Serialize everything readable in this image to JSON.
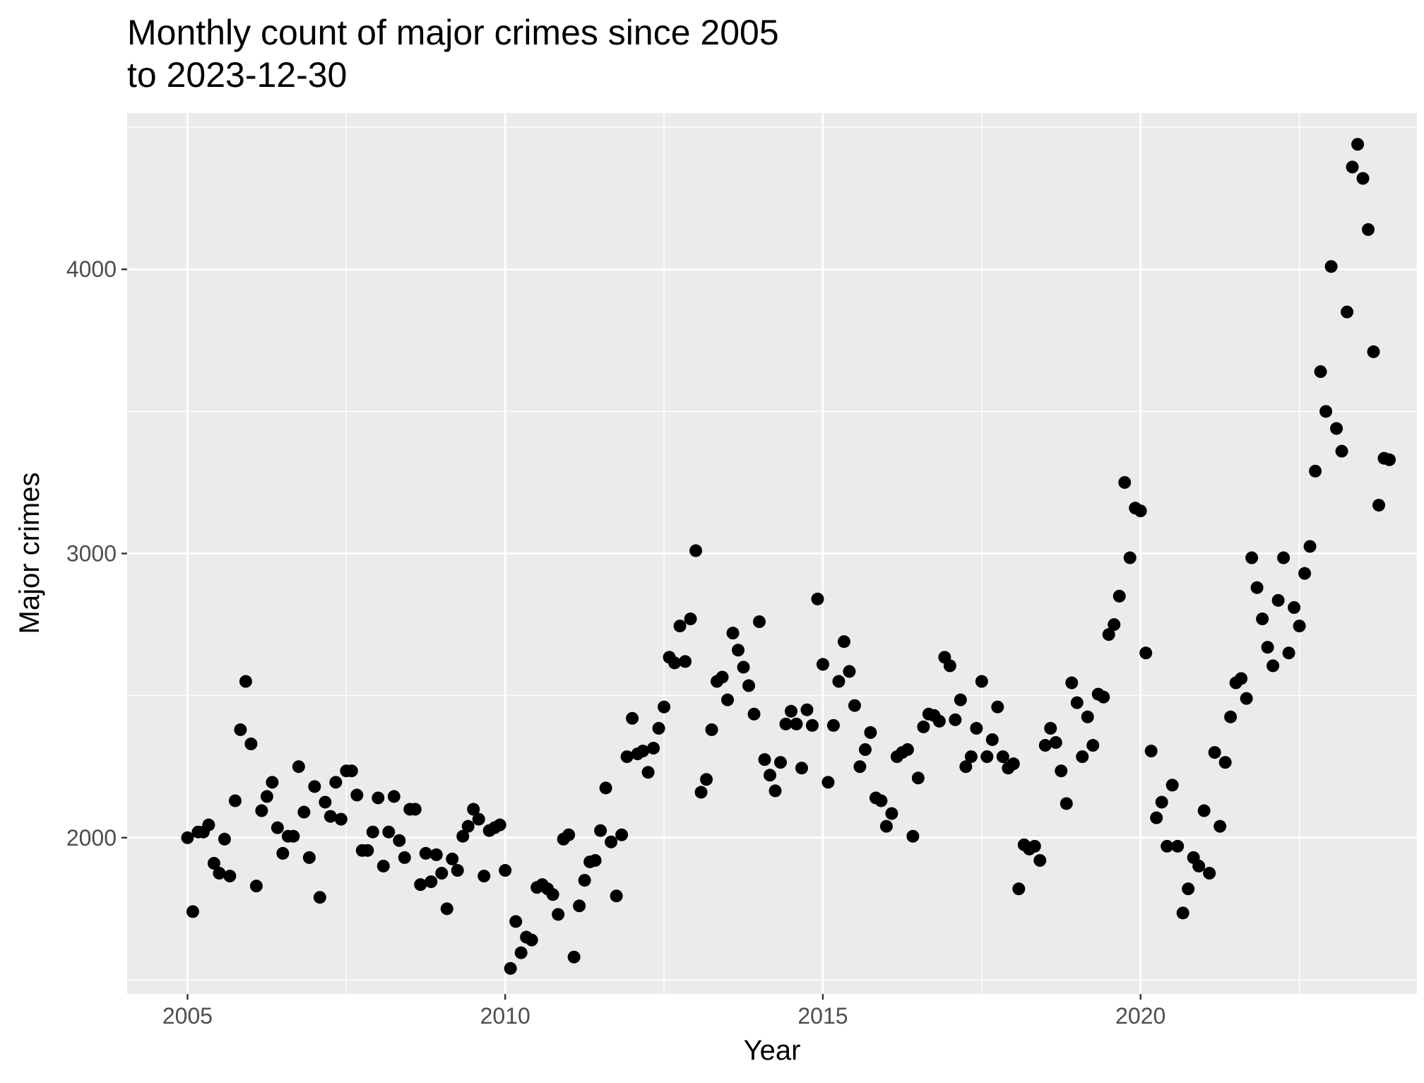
{
  "chart_data": {
    "type": "scatter",
    "title": [
      "Monthly count of major crimes since 2005",
      "to 2023-12-30"
    ],
    "xlabel": "Year",
    "ylabel": "Major crimes",
    "x_ticks": [
      2005,
      2010,
      2015,
      2020
    ],
    "y_ticks": [
      2000,
      3000,
      4000
    ],
    "xlim": [
      2004.05,
      2024.35
    ],
    "ylim": [
      1450,
      4550
    ],
    "grid": true,
    "background": "#ebebeb",
    "point_color": "#000000",
    "start_year": 2005,
    "values": [
      2000,
      1740,
      2020,
      2020,
      2045,
      1910,
      1875,
      1995,
      1865,
      2130,
      2380,
      2550,
      2330,
      1830,
      2095,
      2145,
      2195,
      2035,
      1945,
      2005,
      2005,
      2250,
      2090,
      1930,
      2180,
      1790,
      2125,
      2075,
      2195,
      2065,
      2235,
      2235,
      2150,
      1955,
      1955,
      2020,
      2140,
      1900,
      2020,
      2145,
      1990,
      1930,
      2100,
      2100,
      1835,
      1945,
      1845,
      1940,
      1875,
      1750,
      1925,
      1885,
      2005,
      2040,
      2100,
      2065,
      1865,
      2025,
      2035,
      2045,
      1885,
      1540,
      1705,
      1595,
      1650,
      1640,
      1825,
      1835,
      1820,
      1800,
      1730,
      1995,
      2010,
      1580,
      1760,
      1850,
      1915,
      1920,
      2025,
      2175,
      1985,
      1795,
      2010,
      2285,
      2420,
      2295,
      2305,
      2230,
      2315,
      2385,
      2460,
      2635,
      2615,
      2745,
      2620,
      2770,
      3010,
      2160,
      2205,
      2380,
      2550,
      2565,
      2485,
      2720,
      2660,
      2600,
      2535,
      2435,
      2760,
      2275,
      2220,
      2165,
      2265,
      2400,
      2445,
      2400,
      2245,
      2450,
      2395,
      2840,
      2610,
      2195,
      2395,
      2550,
      2690,
      2585,
      2465,
      2250,
      2310,
      2370,
      2140,
      2130,
      2040,
      2085,
      2285,
      2300,
      2310,
      2005,
      2210,
      2390,
      2435,
      2430,
      2410,
      2635,
      2605,
      2415,
      2485,
      2250,
      2285,
      2385,
      2550,
      2285,
      2345,
      2460,
      2285,
      2245,
      2260,
      1820,
      1975,
      1960,
      1970,
      1920,
      2325,
      2385,
      2335,
      2235,
      2120,
      2545,
      2475,
      2285,
      2425,
      2325,
      2505,
      2495,
      2715,
      2750,
      2850,
      3250,
      2985,
      3160,
      3150,
      2650,
      2305,
      2070,
      2125,
      1970,
      2185,
      1970,
      1735,
      1820,
      1930,
      1900,
      2095,
      1875,
      2300,
      2040,
      2265,
      2425,
      2545,
      2560,
      2490,
      2985,
      2880,
      2770,
      2670,
      2605,
      2835,
      2985,
      2650,
      2810,
      2745,
      2930,
      3025,
      3290,
      3640,
      3500,
      4010,
      3440,
      3360,
      3850,
      4360,
      4440,
      4320,
      4140,
      3710,
      3170,
      3335,
      3330
    ]
  }
}
